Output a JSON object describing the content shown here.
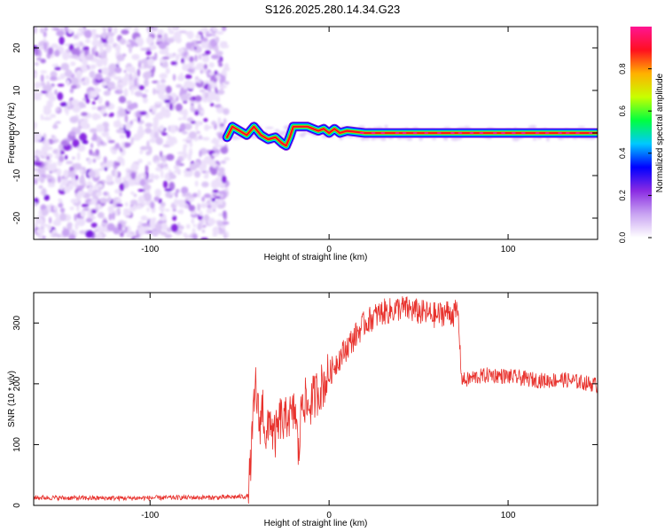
{
  "title": "S126.2025.280.14.34.G23",
  "chart_data": [
    {
      "type": "heatmap",
      "name": "spectrogram",
      "xlabel": "Height of straight line (km)",
      "ylabel": "Frequency (Hz)",
      "xlim": [
        -165,
        150
      ],
      "ylim": [
        -25,
        25
      ],
      "xticks": [
        -100,
        0,
        100
      ],
      "yticks": [
        -20,
        -10,
        0,
        10,
        20
      ],
      "xticklabels": [
        "-100",
        "0",
        "100"
      ],
      "yticklabels": [
        "-20",
        "-10",
        "0",
        "10",
        "20"
      ],
      "noise_region_x": [
        -165,
        -57
      ],
      "signal_start_x": -57,
      "signal_line": {
        "x": [
          -57,
          -54,
          -50,
          -46,
          -42,
          -38,
          -34,
          -30,
          -26,
          -24,
          -22,
          -20,
          -17,
          -15,
          -12,
          -9,
          -6,
          -3,
          0,
          3,
          6,
          10,
          14,
          20,
          40,
          60,
          80,
          100,
          120,
          135,
          150
        ],
        "y": [
          -1,
          1.5,
          0.5,
          -0.5,
          1.5,
          -0.5,
          -1.5,
          -1,
          -2.5,
          -3,
          -1,
          1.5,
          1.5,
          1.5,
          1.5,
          1,
          0.5,
          1,
          0,
          1,
          0,
          0.5,
          0.3,
          0,
          0,
          0,
          0,
          0,
          0,
          0,
          0
        ]
      },
      "colorbar": {
        "label": "Normalized spectral amplitude",
        "range": [
          0,
          1
        ],
        "ticks": [
          0.0,
          0.2,
          0.4,
          0.6,
          0.8
        ],
        "ticklabels": [
          "0.0",
          "0.2",
          "0.4",
          "0.6",
          "0.8"
        ],
        "colors": [
          "#ffffff",
          "#c9a4f2",
          "#8a2be2",
          "#0000ff",
          "#00c8ff",
          "#00ff40",
          "#c8ff00",
          "#ffb000",
          "#ff1020",
          "#ff1493"
        ]
      }
    },
    {
      "type": "line",
      "name": "snr",
      "xlabel": "Height of straight line (km)",
      "ylabel": "SNR (10 * v/v)",
      "xlim": [
        -165,
        150
      ],
      "ylim": [
        0,
        350
      ],
      "xticks": [
        -100,
        0,
        100
      ],
      "yticks": [
        0,
        100,
        200,
        300
      ],
      "xticklabels": [
        "-100",
        "0",
        "100"
      ],
      "yticklabels": [
        "0",
        "100",
        "200",
        "300"
      ],
      "color": "#e8322d",
      "x": [
        -165,
        -140,
        -110,
        -80,
        -60,
        -45,
        -43,
        -41,
        -39,
        -37,
        -35,
        -33,
        -31,
        -29,
        -27,
        -25,
        -23,
        -21,
        -19,
        -17,
        -15,
        -12,
        -9,
        -6,
        -3,
        0,
        5,
        10,
        15,
        20,
        25,
        30,
        35,
        40,
        45,
        50,
        55,
        60,
        65,
        70,
        72,
        74,
        76,
        80,
        90,
        100,
        110,
        120,
        130,
        140,
        150
      ],
      "y": [
        13,
        12,
        12,
        13,
        13,
        15,
        110,
        200,
        130,
        165,
        100,
        150,
        110,
        120,
        145,
        130,
        155,
        140,
        160,
        80,
        185,
        160,
        175,
        190,
        200,
        215,
        240,
        260,
        280,
        300,
        310,
        318,
        320,
        325,
        322,
        318,
        315,
        312,
        318,
        315,
        320,
        210,
        205,
        210,
        215,
        212,
        208,
        205,
        207,
        203,
        198
      ]
    }
  ]
}
